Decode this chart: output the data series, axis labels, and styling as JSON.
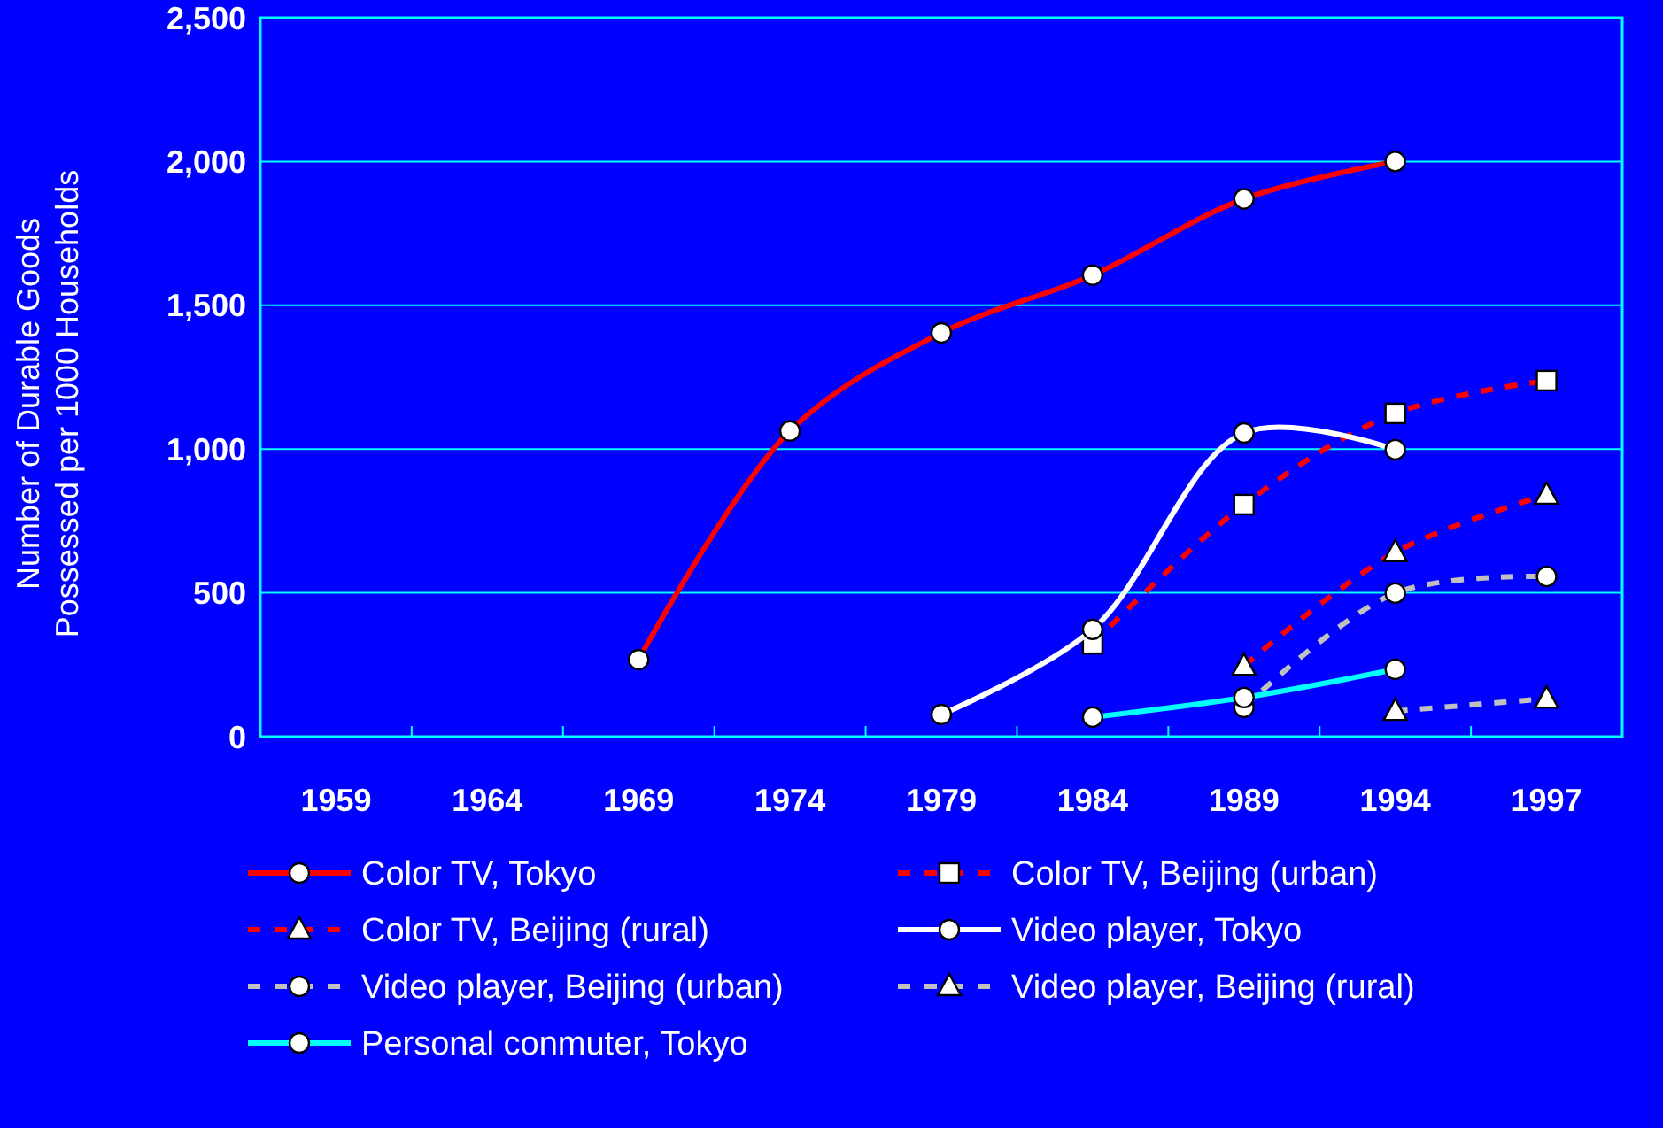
{
  "chart_data": {
    "type": "line",
    "ylabel": "Number of Durable Goods\nPossessed per 1000 Households",
    "categories": [
      "1959",
      "1964",
      "1969",
      "1974",
      "1979",
      "1984",
      "1989",
      "1994",
      "1997"
    ],
    "ylim": [
      0,
      2500
    ],
    "yticks": [
      0,
      {
        "value": 500,
        "label": "500"
      },
      {
        "value": 1000,
        "label": "1,000"
      },
      {
        "value": 1500,
        "label": "1,500"
      },
      {
        "value": 2000,
        "label": "2,000"
      },
      {
        "value": 2500,
        "label": "2,500"
      }
    ],
    "grid": "y",
    "legend": "bottom",
    "series": [
      {
        "name": "Color TV, Tokyo",
        "color": "#ff0000",
        "marker": "circle",
        "line_style": "solid",
        "values": [
          null,
          null,
          268,
          1063,
          1404,
          1605,
          1870,
          2000,
          null
        ]
      },
      {
        "name": "Color TV, Beijing (urban)",
        "color": "#ff0000",
        "marker": "square",
        "line_style": "dashed",
        "values": [
          null,
          null,
          null,
          null,
          null,
          323,
          807,
          1124,
          1238
        ]
      },
      {
        "name": "Color TV, Beijing (rural)",
        "color": "#ff0000",
        "marker": "triangle",
        "line_style": "dashed",
        "values": [
          null,
          null,
          null,
          null,
          null,
          null,
          246,
          641,
          841
        ]
      },
      {
        "name": "Video player, Tokyo",
        "color": "#ffffff",
        "marker": "circle",
        "line_style": "solid",
        "values": [
          null,
          null,
          null,
          null,
          77,
          373,
          1056,
          998,
          null
        ]
      },
      {
        "name": "Video player, Beijing (urban)",
        "color": "#c0c0c0",
        "marker": "circle",
        "line_style": "dashed",
        "values": [
          null,
          null,
          null,
          null,
          null,
          null,
          102,
          499,
          557
        ]
      },
      {
        "name": "Video player, Beijing (rural)",
        "color": "#c0c0c0",
        "marker": "triangle",
        "line_style": "dashed",
        "values": [
          null,
          null,
          null,
          null,
          null,
          null,
          null,
          89,
          132
        ]
      },
      {
        "name": "Personal conmuter, Tokyo",
        "color": "#00ffff",
        "marker": "circle",
        "line_style": "solid",
        "values": [
          null,
          null,
          null,
          null,
          null,
          68,
          136,
          234,
          null
        ]
      }
    ]
  }
}
